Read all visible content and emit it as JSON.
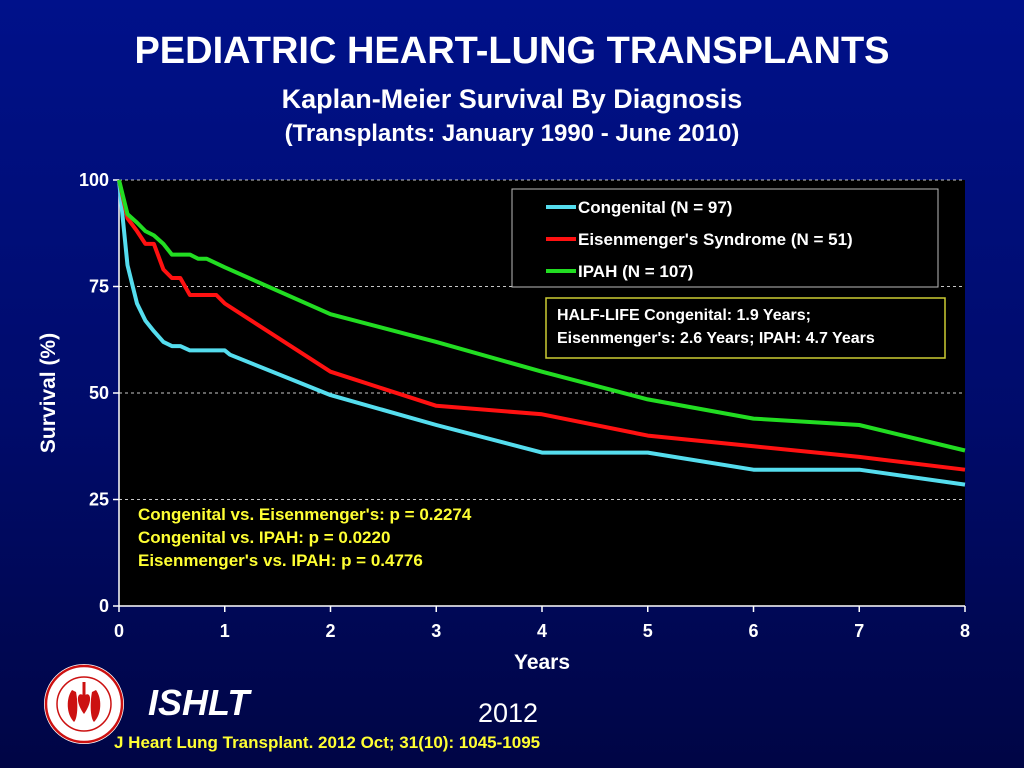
{
  "header": {
    "title": "PEDIATRIC HEART-LUNG TRANSPLANTS",
    "subtitle": "Kaplan-Meier Survival By Diagnosis",
    "period": "(Transplants: January 1990 - June 2010)"
  },
  "chart_data": {
    "type": "line",
    "xlabel": "Years",
    "ylabel": "Survival (%)",
    "xlim": [
      0,
      8
    ],
    "ylim": [
      0,
      100
    ],
    "x_ticks": [
      0,
      1,
      2,
      3,
      4,
      5,
      6,
      7,
      8
    ],
    "y_ticks": [
      0,
      25,
      50,
      75,
      100
    ],
    "grid": "horizontal dashed",
    "legend_position": "top-right",
    "series": [
      {
        "name": "Congenital (N = 97)",
        "color": "#55ddee",
        "points": [
          [
            0,
            100
          ],
          [
            0.04,
            90
          ],
          [
            0.08,
            80
          ],
          [
            0.17,
            71
          ],
          [
            0.25,
            67
          ],
          [
            0.33,
            64.5
          ],
          [
            0.42,
            62
          ],
          [
            0.5,
            61
          ],
          [
            0.58,
            61
          ],
          [
            0.67,
            60
          ],
          [
            1.0,
            60
          ],
          [
            1.05,
            59
          ],
          [
            2.0,
            49.5
          ],
          [
            3.0,
            42.5
          ],
          [
            4.0,
            36
          ],
          [
            5.0,
            36
          ],
          [
            6.0,
            32
          ],
          [
            7.0,
            32
          ],
          [
            8.0,
            28.5
          ]
        ]
      },
      {
        "name": "Eisenmenger's Syndrome  (N = 51)",
        "color": "#ff1111",
        "points": [
          [
            0,
            100
          ],
          [
            0.08,
            91
          ],
          [
            0.17,
            88
          ],
          [
            0.25,
            85
          ],
          [
            0.33,
            85
          ],
          [
            0.42,
            79
          ],
          [
            0.5,
            77
          ],
          [
            0.58,
            77
          ],
          [
            0.67,
            73
          ],
          [
            0.92,
            73
          ],
          [
            1.0,
            71
          ],
          [
            2.0,
            55
          ],
          [
            3.0,
            47
          ],
          [
            4.0,
            45
          ],
          [
            5.0,
            40
          ],
          [
            6.0,
            37.5
          ],
          [
            7.0,
            35
          ],
          [
            8.0,
            32
          ]
        ]
      },
      {
        "name": "IPAH (N = 107)",
        "color": "#22dd22",
        "points": [
          [
            0,
            100
          ],
          [
            0.08,
            92
          ],
          [
            0.17,
            90
          ],
          [
            0.25,
            88
          ],
          [
            0.33,
            87
          ],
          [
            0.42,
            85
          ],
          [
            0.5,
            82.5
          ],
          [
            0.58,
            82.5
          ],
          [
            0.67,
            82.5
          ],
          [
            0.75,
            81.5
          ],
          [
            0.83,
            81.5
          ],
          [
            1.0,
            79.5
          ],
          [
            2.0,
            68.5
          ],
          [
            3.0,
            62
          ],
          [
            4.0,
            55
          ],
          [
            5.0,
            48.5
          ],
          [
            6.0,
            44
          ],
          [
            7.0,
            42.5
          ],
          [
            8.0,
            36.5
          ]
        ]
      }
    ],
    "annotations": {
      "half_life": [
        "HALF-LIFE  Congenital: 1.9 Years;",
        "Eisenmenger's: 2.6 Years; IPAH: 4.7 Years"
      ],
      "p_values": [
        "Congenital vs. Eisenmenger's: p = 0.2274",
        "Congenital vs. IPAH: p = 0.0220",
        "Eisenmenger's vs. IPAH: p = 0.4776"
      ]
    }
  },
  "footer": {
    "org": "ISHLT",
    "year": "2012",
    "citation": "J Heart Lung Transplant.  2012 Oct; 31(10): 1045-1095"
  },
  "colors": {
    "background": "#000b6a",
    "plot_area": "#000000",
    "annotation_text": "#ffff33"
  }
}
